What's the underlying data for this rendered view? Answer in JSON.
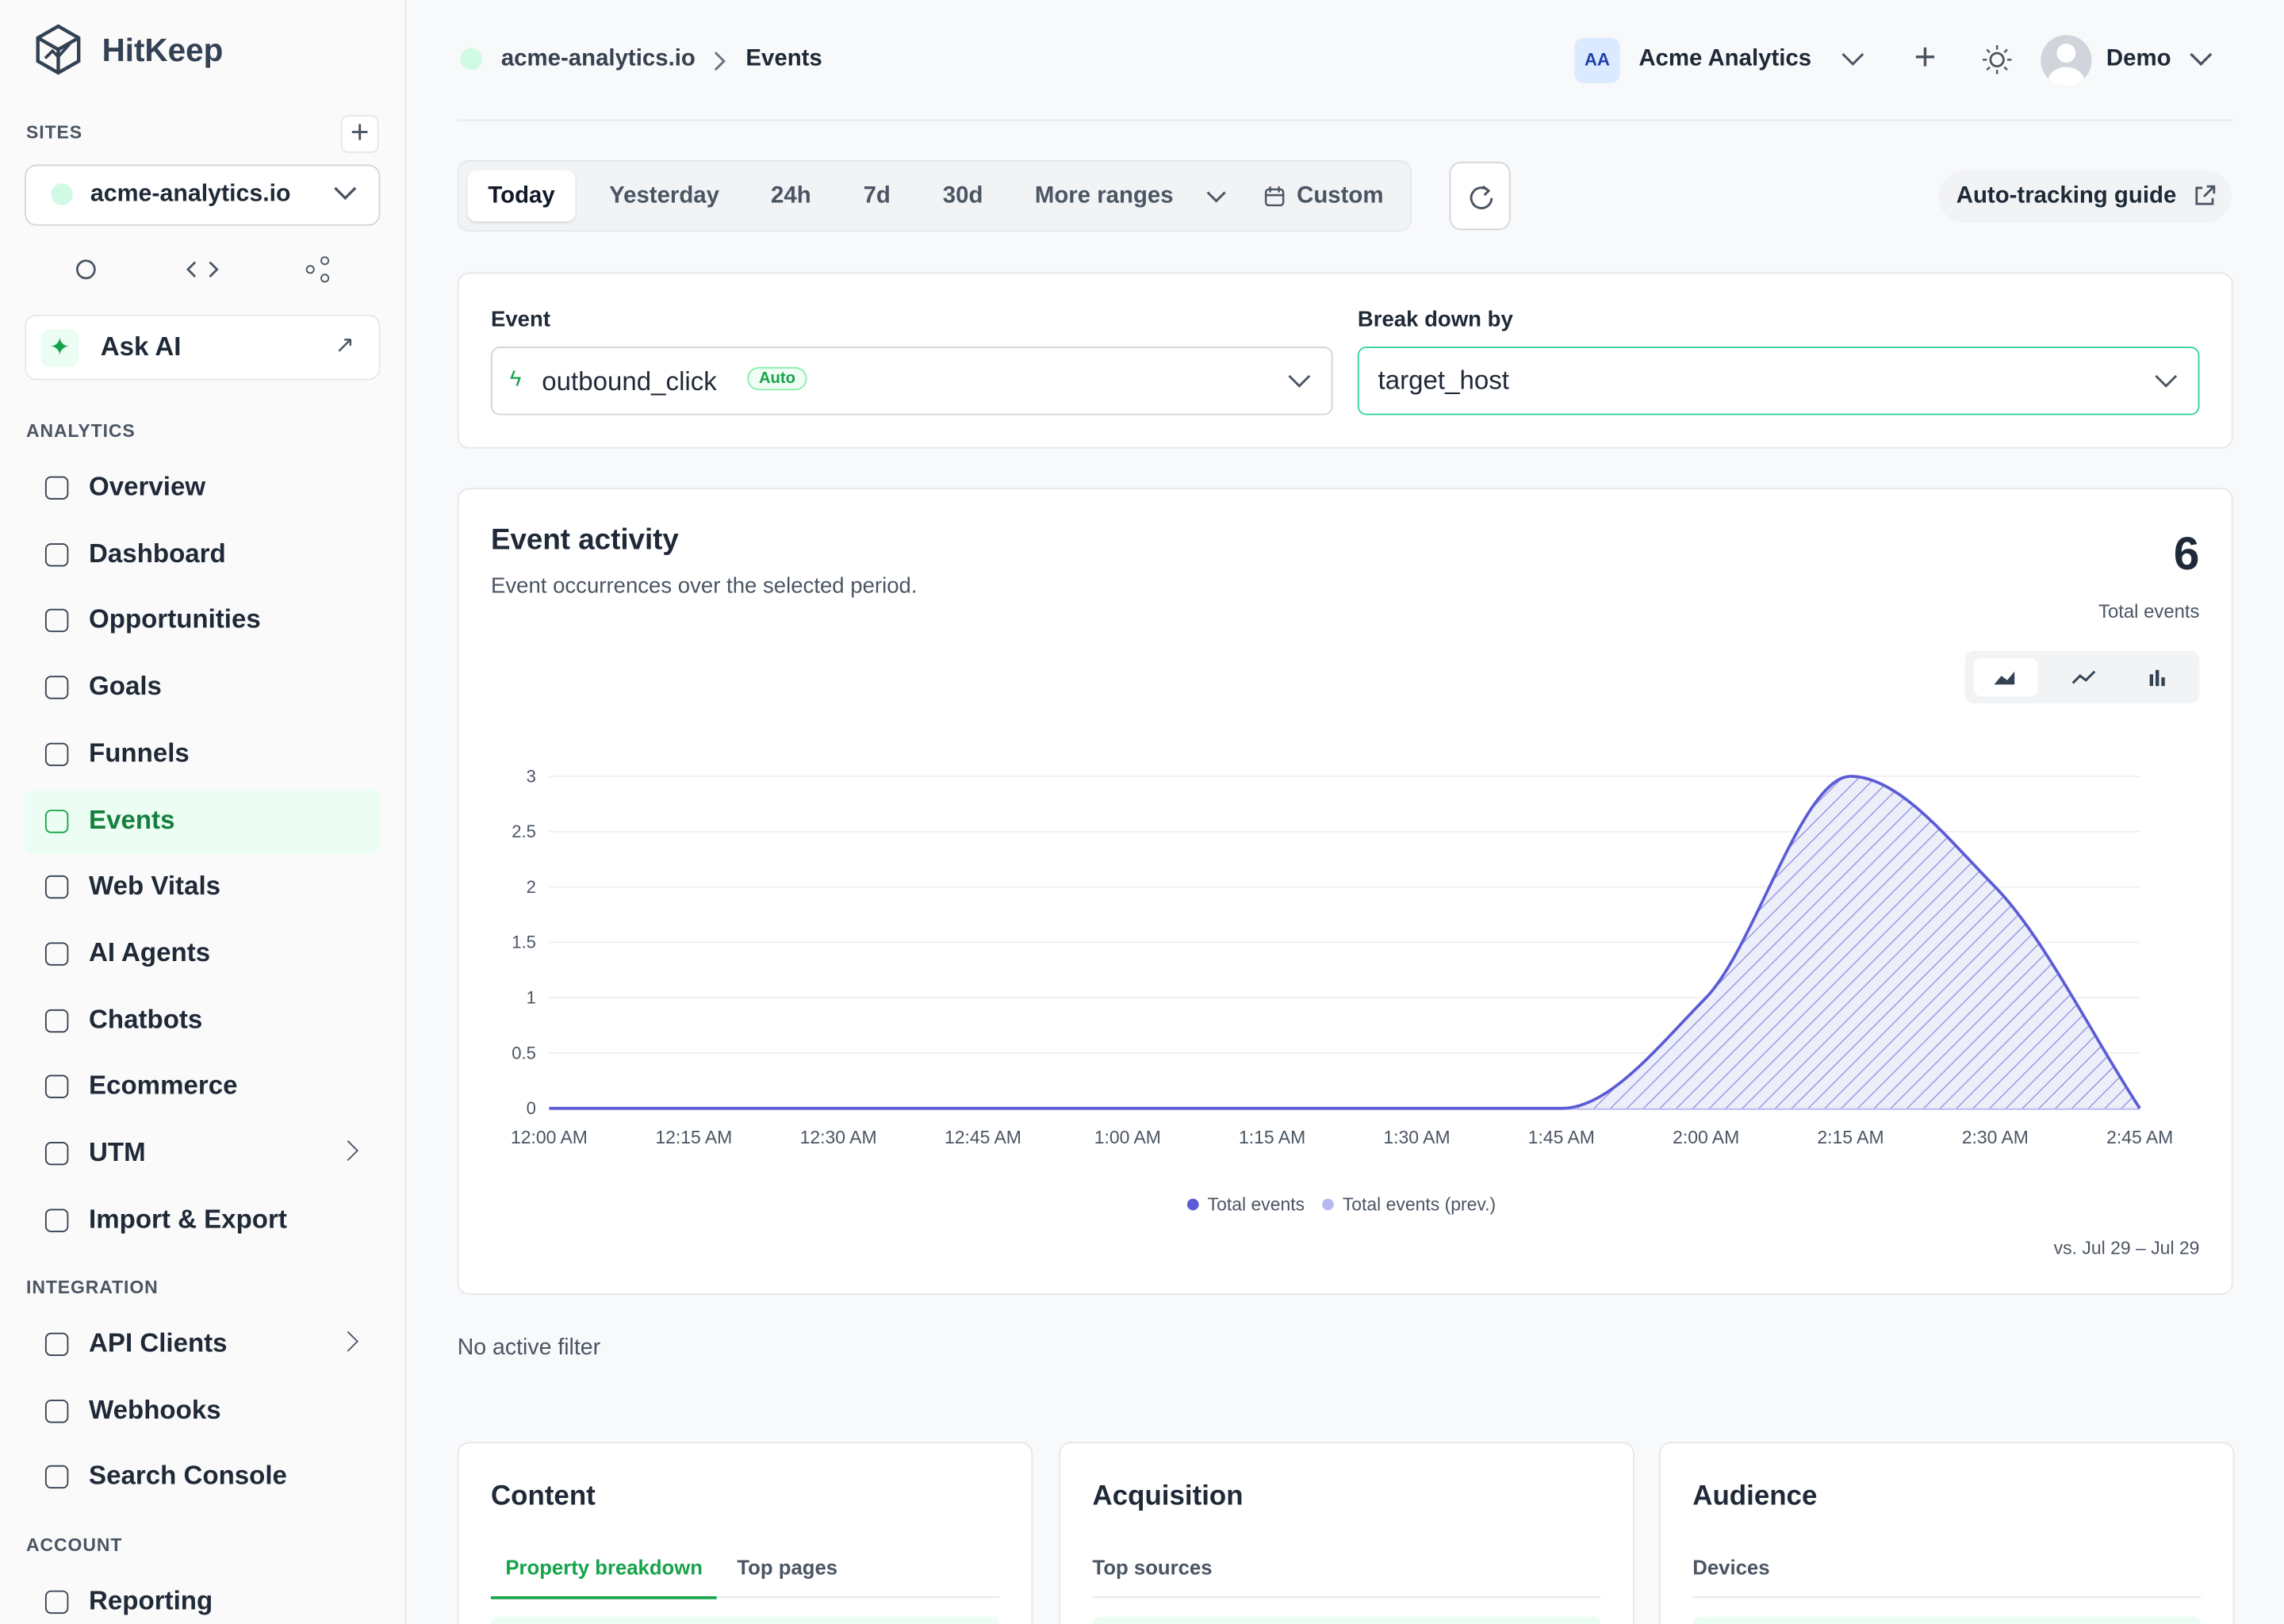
{
  "brand": "HitKeep",
  "sidebar": {
    "sites_label": "SITES",
    "site": "acme-analytics.io",
    "ask_ai": "Ask AI",
    "sections": [
      {
        "title": "ANALYTICS",
        "items": [
          "Overview",
          "Dashboard",
          "Opportunities",
          "Goals",
          "Funnels",
          "Events",
          "Web Vitals",
          "AI Agents",
          "Chatbots",
          "Ecommerce",
          "UTM",
          "Import & Export"
        ]
      },
      {
        "title": "INTEGRATION",
        "items": [
          "API Clients",
          "Webhooks",
          "Search Console"
        ]
      },
      {
        "title": "ACCOUNT",
        "items": [
          "Reporting"
        ]
      }
    ]
  },
  "header": {
    "breadcrumb": [
      "acme-analytics.io",
      "Events"
    ],
    "org_badge": "AA",
    "org": "Acme Analytics",
    "user": "Demo"
  },
  "ranges": [
    "Today",
    "Yesterday",
    "24h",
    "7d",
    "30d",
    "More ranges",
    "Custom"
  ],
  "guide": "Auto-tracking guide",
  "filters": {
    "event_label": "Event",
    "event": "outbound_click",
    "event_badge": "Auto",
    "breakdown_label": "Break down by",
    "breakdown": "target_host"
  },
  "chart_data": {
    "type": "area",
    "title": "Event activity",
    "subtitle": "Event occurrences over the selected period.",
    "total": 6,
    "total_label": "Total events",
    "categories": [
      "12:00 AM",
      "12:15 AM",
      "12:30 AM",
      "12:45 AM",
      "1:00 AM",
      "1:15 AM",
      "1:30 AM",
      "1:45 AM",
      "2:00 AM",
      "2:15 AM",
      "2:30 AM",
      "2:45 AM"
    ],
    "series": [
      {
        "name": "Total events",
        "color": "#5b5bd6",
        "values": [
          0,
          0,
          0,
          0,
          0,
          0,
          0,
          0,
          1,
          3,
          2,
          0
        ]
      },
      {
        "name": "Total events (prev.)",
        "color": "#b8b8f0",
        "values": [
          0,
          0,
          0,
          0,
          0,
          0,
          0,
          0,
          0,
          0,
          0,
          0
        ]
      }
    ],
    "ylim": [
      0,
      3
    ],
    "yticks": [
      0,
      0.5,
      1,
      1.5,
      2,
      2.5,
      3
    ],
    "grid": true,
    "comparison": "vs. Jul 29 – Jul 29"
  },
  "no_filter": "No active filter",
  "cards": [
    {
      "title": "Content",
      "tabs": [
        "Property breakdown",
        "Top pages"
      ]
    },
    {
      "title": "Acquisition",
      "tabs": [
        "Top sources"
      ]
    },
    {
      "title": "Audience",
      "tabs": [
        "Devices"
      ]
    }
  ]
}
